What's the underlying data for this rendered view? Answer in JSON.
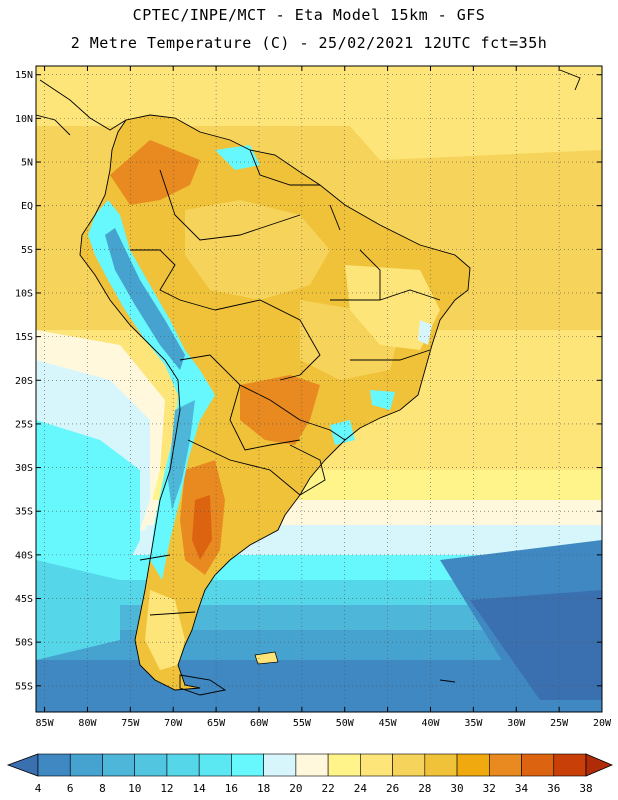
{
  "header": {
    "line1": "CPTEC/INPE/MCT -  Eta Model 15km - GFS",
    "line2": "2 Metre Temperature (C) - 25/02/2021 12UTC fct=35h"
  },
  "map": {
    "lon_range": [
      -86,
      -20
    ],
    "lat_range": [
      -58,
      16
    ],
    "lat_labels": [
      "15N",
      "10N",
      "5N",
      "EQ",
      "5S",
      "10S",
      "15S",
      "20S",
      "25S",
      "30S",
      "35S",
      "40S",
      "45S",
      "50S",
      "55S"
    ],
    "lat_values": [
      15,
      10,
      5,
      0,
      -5,
      -10,
      -15,
      -20,
      -25,
      -30,
      -35,
      -40,
      -45,
      -50,
      -55
    ],
    "lon_labels": [
      "85W",
      "80W",
      "75W",
      "70W",
      "65W",
      "60W",
      "55W",
      "50W",
      "45W",
      "40W",
      "35W",
      "30W",
      "25W",
      "20W"
    ],
    "lon_values": [
      -85,
      -80,
      -75,
      -70,
      -65,
      -60,
      -55,
      -50,
      -45,
      -40,
      -35,
      -30,
      -25,
      -20
    ],
    "grid": "dotted"
  },
  "colorbar": {
    "labels": [
      "4",
      "6",
      "8",
      "10",
      "12",
      "14",
      "16",
      "18",
      "20",
      "22",
      "24",
      "26",
      "28",
      "30",
      "32",
      "34",
      "36",
      "38"
    ],
    "colors": [
      "#3a6fb0",
      "#3f88c2",
      "#46a2cf",
      "#4db6d9",
      "#52c6e1",
      "#56d6e9",
      "#5ce8f2",
      "#66f8fc",
      "#d6f6fb",
      "#fff8dd",
      "#fff48a",
      "#fde57a",
      "#f6d35a",
      "#f0c23a",
      "#f0aa10",
      "#e88a20",
      "#dc6410",
      "#c84008",
      "#b02c08"
    ]
  }
}
